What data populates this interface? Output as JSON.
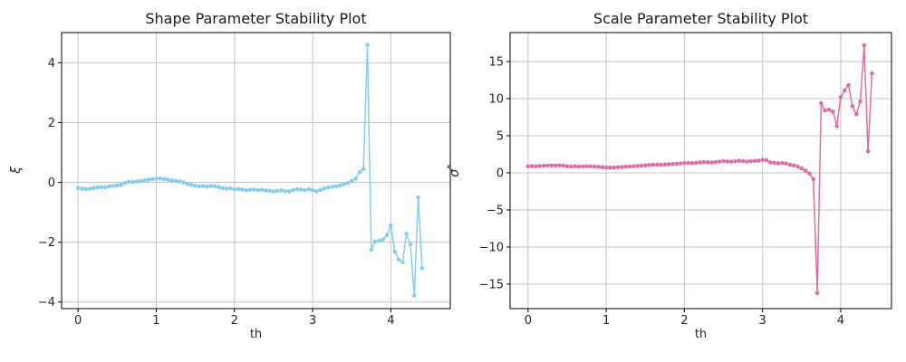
{
  "figure": {
    "background": "#ffffff"
  },
  "chart_data": [
    {
      "id": "shape",
      "type": "line",
      "title": "Shape Parameter Stability Plot",
      "xlabel": "th",
      "ylabel": "ξ",
      "line_color": "#87ceeb",
      "grid_color": "#c6c6c6",
      "marker": "circle",
      "grid": true,
      "legend": "none",
      "xlim": [
        -0.21,
        4.76
      ],
      "ylim": [
        -4.22,
        5.01
      ],
      "xticks": [
        0,
        1,
        2,
        3,
        4
      ],
      "yticks": [
        -4,
        -2,
        0,
        2,
        4
      ],
      "x": [
        0,
        0.05,
        0.1,
        0.15,
        0.2,
        0.25,
        0.3,
        0.35,
        0.4,
        0.45,
        0.5,
        0.55,
        0.6,
        0.65,
        0.7,
        0.75,
        0.8,
        0.85,
        0.9,
        0.95,
        1,
        1.05,
        1.1,
        1.15,
        1.2,
        1.25,
        1.3,
        1.35,
        1.4,
        1.45,
        1.5,
        1.55,
        1.6,
        1.65,
        1.7,
        1.75,
        1.8,
        1.85,
        1.9,
        1.95,
        2,
        2.05,
        2.1,
        2.15,
        2.2,
        2.25,
        2.3,
        2.35,
        2.4,
        2.45,
        2.5,
        2.55,
        2.6,
        2.65,
        2.7,
        2.75,
        2.8,
        2.85,
        2.9,
        2.95,
        3,
        3.05,
        3.1,
        3.15,
        3.2,
        3.25,
        3.3,
        3.35,
        3.4,
        3.45,
        3.5,
        3.55,
        3.6,
        3.65,
        3.7,
        3.75,
        3.8,
        3.85,
        3.9,
        3.95,
        4,
        4.05,
        4.1,
        4.15,
        4.2,
        4.25,
        4.3,
        4.35,
        4.4
      ],
      "y": [
        -0.19,
        -0.21,
        -0.22,
        -0.21,
        -0.19,
        -0.17,
        -0.16,
        -0.16,
        -0.13,
        -0.12,
        -0.1,
        -0.08,
        -0.02,
        0.02,
        0.01,
        0.03,
        0.05,
        0.07,
        0.09,
        0.11,
        0.12,
        0.13,
        0.11,
        0.09,
        0.07,
        0.05,
        0.03,
        0.0,
        -0.05,
        -0.08,
        -0.11,
        -0.13,
        -0.12,
        -0.14,
        -0.12,
        -0.13,
        -0.16,
        -0.19,
        -0.21,
        -0.2,
        -0.23,
        -0.22,
        -0.24,
        -0.26,
        -0.25,
        -0.24,
        -0.26,
        -0.25,
        -0.27,
        -0.28,
        -0.3,
        -0.28,
        -0.27,
        -0.29,
        -0.3,
        -0.26,
        -0.23,
        -0.24,
        -0.26,
        -0.23,
        -0.26,
        -0.3,
        -0.25,
        -0.2,
        -0.17,
        -0.15,
        -0.13,
        -0.1,
        -0.06,
        -0.02,
        0.05,
        0.12,
        0.35,
        0.45,
        4.6,
        -2.25,
        -1.98,
        -1.95,
        -1.91,
        -1.76,
        -1.44,
        -2.31,
        -2.58,
        -2.66,
        -1.72,
        -2.08,
        -3.78,
        -0.5,
        -2.87
      ]
    },
    {
      "id": "scale",
      "type": "line",
      "title": "Scale Parameter Stability Plot",
      "xlabel": "th",
      "ylabel": "σ*",
      "ylabel_parts": {
        "base": "σ",
        "sup": "*"
      },
      "line_color": "#e06ea6",
      "grid_color": "#c6c6c6",
      "marker": "circle",
      "grid": true,
      "legend": "none",
      "xlim": [
        -0.23,
        4.65
      ],
      "ylim": [
        -18.3,
        18.9
      ],
      "xticks": [
        0,
        1,
        2,
        3,
        4
      ],
      "yticks": [
        -15,
        -10,
        -5,
        0,
        5,
        10,
        15
      ],
      "x": [
        0,
        0.05,
        0.1,
        0.15,
        0.2,
        0.25,
        0.3,
        0.35,
        0.4,
        0.45,
        0.5,
        0.55,
        0.6,
        0.65,
        0.7,
        0.75,
        0.8,
        0.85,
        0.9,
        0.95,
        1,
        1.05,
        1.1,
        1.15,
        1.2,
        1.25,
        1.3,
        1.35,
        1.4,
        1.45,
        1.5,
        1.55,
        1.6,
        1.65,
        1.7,
        1.75,
        1.8,
        1.85,
        1.9,
        1.95,
        2,
        2.05,
        2.1,
        2.15,
        2.2,
        2.25,
        2.3,
        2.35,
        2.4,
        2.45,
        2.5,
        2.55,
        2.6,
        2.65,
        2.7,
        2.75,
        2.8,
        2.85,
        2.9,
        2.95,
        3,
        3.05,
        3.1,
        3.15,
        3.2,
        3.25,
        3.3,
        3.35,
        3.4,
        3.45,
        3.5,
        3.55,
        3.6,
        3.65,
        3.7,
        3.75,
        3.8,
        3.85,
        3.9,
        3.95,
        4,
        4.05,
        4.1,
        4.15,
        4.2,
        4.25,
        4.3,
        4.35,
        4.4
      ],
      "y": [
        0.88,
        0.9,
        0.88,
        0.92,
        0.95,
        0.98,
        1.0,
        0.98,
        1.0,
        0.97,
        0.88,
        0.85,
        0.87,
        0.84,
        0.86,
        0.88,
        0.86,
        0.83,
        0.8,
        0.75,
        0.72,
        0.7,
        0.72,
        0.75,
        0.78,
        0.82,
        0.85,
        0.88,
        0.92,
        0.96,
        1.0,
        1.05,
        1.08,
        1.1,
        1.08,
        1.12,
        1.15,
        1.18,
        1.22,
        1.26,
        1.3,
        1.33,
        1.3,
        1.35,
        1.4,
        1.44,
        1.42,
        1.4,
        1.45,
        1.52,
        1.58,
        1.53,
        1.5,
        1.55,
        1.62,
        1.58,
        1.52,
        1.56,
        1.6,
        1.63,
        1.75,
        1.7,
        1.4,
        1.35,
        1.28,
        1.32,
        1.26,
        1.1,
        1.0,
        0.85,
        0.6,
        0.3,
        -0.1,
        -0.85,
        -16.2,
        9.4,
        8.4,
        8.5,
        8.25,
        6.3,
        10.2,
        11.1,
        11.8,
        9.0,
        7.9,
        9.6,
        17.2,
        2.9,
        13.4
      ]
    }
  ]
}
